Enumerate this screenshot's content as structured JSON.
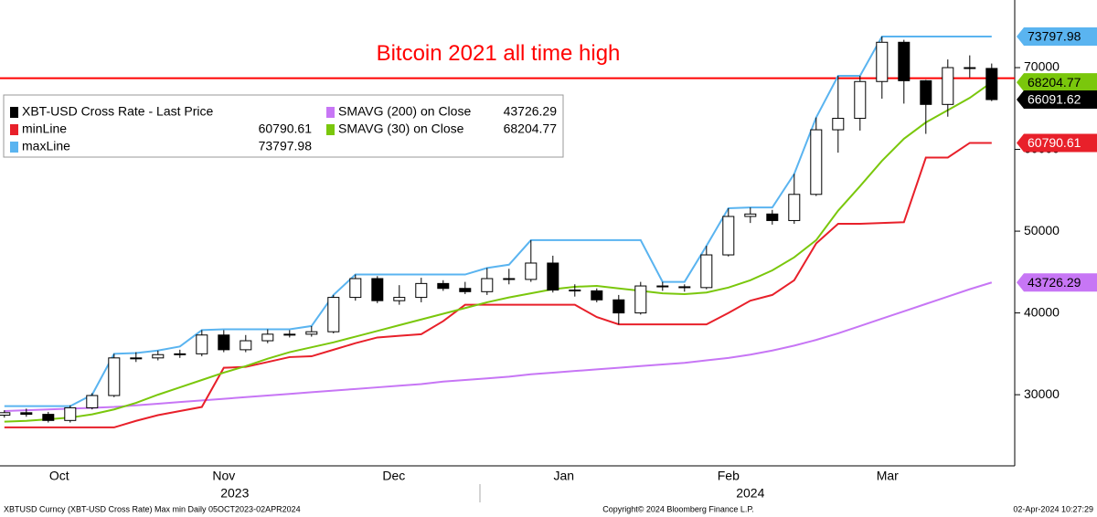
{
  "chart_data": {
    "type": "candlestick",
    "annotation": {
      "text": "Bitcoin 2021 all time high",
      "value": 68700,
      "color": "#ff0000"
    },
    "x": [
      0,
      4,
      8,
      12,
      16,
      20,
      24,
      28,
      32,
      36,
      40,
      44,
      48,
      52,
      56,
      60,
      64,
      68,
      72,
      76,
      80,
      84,
      88,
      92,
      96,
      100,
      104,
      108,
      112,
      116,
      120,
      124,
      128,
      132,
      136,
      140,
      144,
      148,
      152,
      156,
      160,
      164,
      168,
      172,
      176,
      180
    ],
    "xlim": [
      -0.8,
      184.2
    ],
    "xticks": [
      {
        "value": 10,
        "label": "Oct"
      },
      {
        "value": 40,
        "label": "Nov"
      },
      {
        "value": 71,
        "label": "Dec"
      },
      {
        "value": 102,
        "label": "Jan"
      },
      {
        "value": 132,
        "label": "Feb"
      },
      {
        "value": 161,
        "label": "Mar"
      }
    ],
    "year_labels": [
      {
        "value": 42,
        "label": "2023"
      },
      {
        "value": 136,
        "label": "2024"
      }
    ],
    "ylim": [
      21300,
      78270
    ],
    "yticks": [
      30000,
      40000,
      50000,
      60000,
      70000
    ],
    "legend": "upper left",
    "ohlc": {
      "name": "XBT-USD Cross Rate - Last Price",
      "up_color": "#ffffff",
      "down_color": "#000000",
      "open": [
        27500,
        27800,
        27600,
        26850,
        28400,
        29900,
        34500,
        34500,
        34900,
        35000,
        37300,
        35500,
        36600,
        37400,
        37400,
        37700,
        41900,
        44200,
        41500,
        41900,
        43600,
        43000,
        42600,
        44200,
        44100,
        46100,
        42800,
        42700,
        41600,
        40000,
        43300,
        43200,
        43100,
        47100,
        51800,
        52100,
        51300,
        54500,
        62400,
        63800,
        68300,
        73100,
        68400,
        65500,
        70000,
        69900
      ],
      "high": [
        28100,
        28300,
        27900,
        28700,
        30200,
        35000,
        35200,
        35400,
        35500,
        37900,
        37900,
        37300,
        38000,
        37900,
        38400,
        42200,
        44700,
        44500,
        43400,
        44300,
        44000,
        43800,
        45500,
        45400,
        48900,
        47000,
        43500,
        43000,
        42200,
        43800,
        43800,
        43500,
        48200,
        52800,
        52900,
        52600,
        57000,
        63900,
        69000,
        69000,
        73800,
        73400,
        68500,
        71000,
        71500,
        70500
      ],
      "low": [
        27200,
        27300,
        26600,
        26600,
        28200,
        29700,
        34000,
        34200,
        34500,
        34700,
        35200,
        35200,
        36300,
        37000,
        37100,
        37500,
        41500,
        41200,
        41000,
        41300,
        42700,
        42300,
        42200,
        43500,
        43800,
        42500,
        42000,
        41300,
        38600,
        39800,
        42700,
        42600,
        42900,
        46900,
        51000,
        50800,
        50900,
        54300,
        59600,
        62300,
        66200,
        65600,
        61900,
        64000,
        68800,
        65900
      ],
      "close": [
        27800,
        27600,
        26850,
        28400,
        29900,
        34500,
        34500,
        34900,
        35000,
        37300,
        35500,
        36600,
        37400,
        37400,
        37700,
        41900,
        44200,
        41500,
        41900,
        43600,
        43000,
        42600,
        44200,
        44100,
        46100,
        42800,
        42700,
        41600,
        40000,
        43300,
        43200,
        43100,
        47100,
        51800,
        52100,
        51300,
        54500,
        62400,
        63800,
        68300,
        73100,
        68400,
        65500,
        70000,
        69900,
        66091.62
      ]
    },
    "series": [
      {
        "name": "minLine",
        "color": "#e8202a",
        "values": [
          26000,
          26000,
          26000,
          26000,
          26000,
          26000,
          26800,
          27500,
          28000,
          28500,
          33300,
          33400,
          34000,
          34600,
          34700,
          35500,
          36300,
          37000,
          37200,
          37400,
          39000,
          41000,
          41000,
          41000,
          41000,
          41000,
          41000,
          39500,
          38600,
          38600,
          38600,
          38600,
          38600,
          40000,
          41500,
          42200,
          44000,
          48500,
          50900,
          50900,
          51000,
          51100,
          59000,
          59000,
          60790.61,
          60790.61
        ]
      },
      {
        "name": "maxLine",
        "color": "#5ab4f0",
        "values": [
          28600,
          28600,
          28600,
          28600,
          30000,
          35000,
          35100,
          35400,
          35900,
          37900,
          38000,
          38000,
          38000,
          38000,
          38400,
          42200,
          44700,
          44700,
          44700,
          44700,
          44700,
          44700,
          45500,
          45900,
          48900,
          48900,
          48900,
          48900,
          48900,
          48900,
          43800,
          43800,
          48200,
          52800,
          52900,
          52900,
          57000,
          63900,
          69000,
          69000,
          73797.98,
          73797.98,
          73797.98,
          73797.98,
          73797.98,
          73797.98
        ]
      },
      {
        "name": "SMAVG (200)  on Close",
        "color": "#c776f5",
        "values": [
          28000,
          28100,
          28200,
          28300,
          28400,
          28500,
          28700,
          28900,
          29100,
          29300,
          29500,
          29700,
          29900,
          30100,
          30300,
          30500,
          30700,
          30900,
          31100,
          31300,
          31600,
          31800,
          32000,
          32200,
          32500,
          32700,
          32900,
          33100,
          33300,
          33500,
          33700,
          33900,
          34200,
          34500,
          34900,
          35400,
          36000,
          36700,
          37500,
          38400,
          39300,
          40200,
          41100,
          42000,
          42900,
          43726.29
        ]
      },
      {
        "name": "SMAVG (30)  on Close",
        "color": "#7ac70c",
        "values": [
          26700,
          26800,
          27000,
          27200,
          27600,
          28200,
          29000,
          30000,
          30900,
          31800,
          32700,
          33500,
          34400,
          35200,
          35800,
          36400,
          37100,
          37800,
          38500,
          39200,
          39900,
          40600,
          41300,
          41900,
          42400,
          42900,
          43200,
          43300,
          43000,
          42700,
          42400,
          42300,
          42500,
          43100,
          44000,
          45200,
          46800,
          48900,
          52500,
          55500,
          58600,
          61300,
          63300,
          64800,
          66300,
          68204.77
        ]
      }
    ],
    "footer": {
      "left": "XBTUSD Curncy (XBT-USD Cross Rate) Max min  Daily 05OCT2023-02APR2024",
      "center": "Copyright© 2024 Bloomberg Finance L.P.",
      "right": "02-Apr-2024 10:27:29"
    }
  }
}
